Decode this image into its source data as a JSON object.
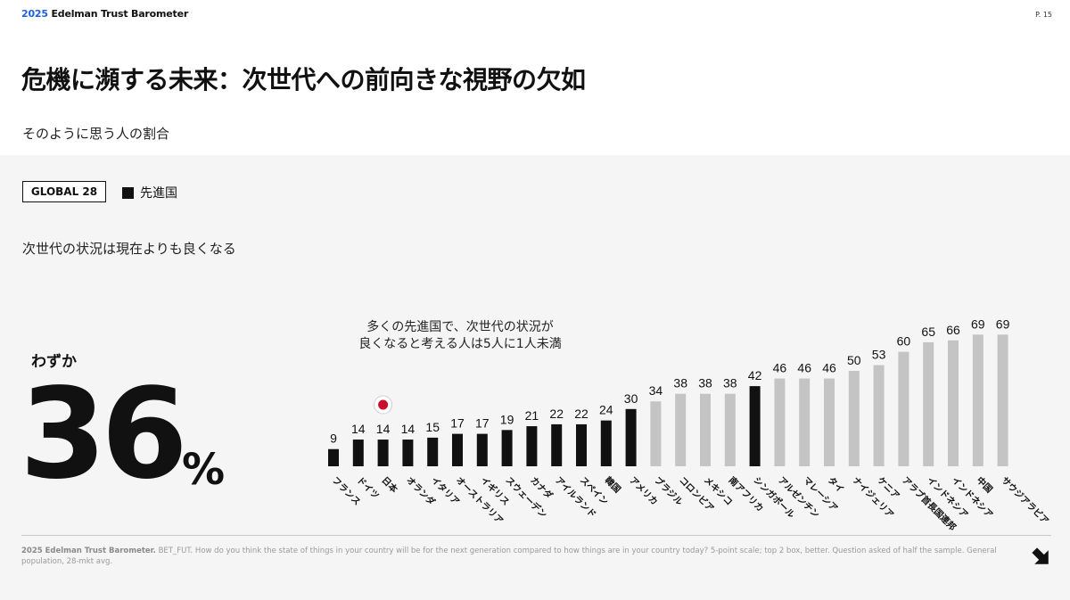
{
  "header": {
    "brand_year": "2025",
    "brand_name": "Edelman Trust Barometer",
    "page_number": "P. 15"
  },
  "title": "危機に瀕する未来：次世代への前向きな視野の欠如",
  "subtitle": "そのように思う人の割合",
  "badge": "GLOBAL 28",
  "legend_label": "先進国",
  "question": "次世代の状況は現在よりも良くなる",
  "headline": {
    "prefix": "わずか",
    "value": "36",
    "unit": "%"
  },
  "annotation": {
    "line1": "多くの先進国で、次世代の状況が",
    "line2": "良くなると考える人は5人に1人未満"
  },
  "footnote": {
    "source": "2025 Edelman Trust Barometer.",
    "text": " BET_FUT. How do you think the state of things in your country will be for the next generation compared to how things are in your country today? 5-point scale; top 2 box, better. Question asked of half the sample. General population, 28-mkt avg."
  },
  "colors": {
    "developed": "#111111",
    "other": "#c4c4c4",
    "brand_blue": "#1f5fe0",
    "japan_red": "#c8102e"
  },
  "icons": {
    "japan_flag": "japan-flag-icon",
    "next_arrow": "arrow-down-right-icon"
  },
  "chart_data": {
    "type": "bar",
    "title": "",
    "xlabel": "",
    "ylabel": "",
    "ylim": [
      0,
      100
    ],
    "grid": false,
    "categories": [
      "フランス",
      "ドイツ",
      "日本",
      "オランダ",
      "イタリア",
      "オーストラリア",
      "イギリス",
      "スウェーデン",
      "カナダ",
      "アイルランド",
      "スペイン",
      "韓国",
      "アメリカ",
      "ブラジル",
      "コロンビア",
      "メキシコ",
      "南アフリカ",
      "シンガポール",
      "アルゼンチン",
      "マレーシア",
      "タイ",
      "ナイジェリア",
      "ケニア",
      "アラブ首長国連邦",
      "インドネシア",
      "インドネシア",
      "中国",
      "サウジアラビア"
    ],
    "values": [
      9,
      14,
      14,
      14,
      15,
      17,
      17,
      19,
      21,
      22,
      22,
      24,
      30,
      34,
      38,
      38,
      38,
      42,
      46,
      46,
      46,
      50,
      53,
      60,
      65,
      66,
      69,
      69
    ],
    "developed": [
      true,
      true,
      true,
      true,
      true,
      true,
      true,
      true,
      true,
      true,
      true,
      true,
      true,
      false,
      false,
      false,
      false,
      true,
      false,
      false,
      false,
      false,
      false,
      false,
      false,
      false,
      false,
      false
    ],
    "highlight": "日本"
  }
}
